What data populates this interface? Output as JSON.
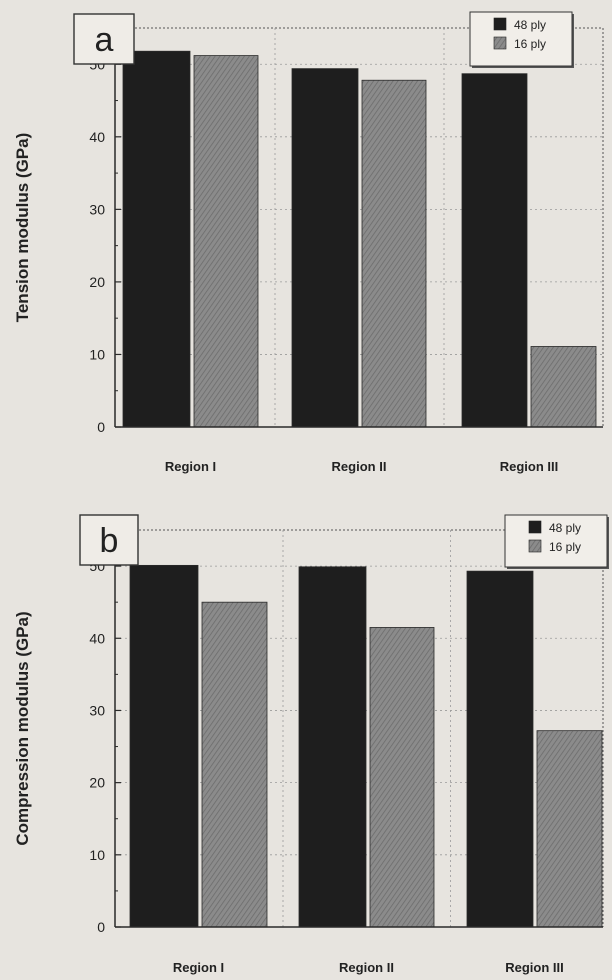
{
  "chart_data": [
    {
      "type": "bar",
      "panel_label": "a",
      "ylabel": "Tension modulus (GPa)",
      "categories": [
        "Region I",
        "Region II",
        "Region III"
      ],
      "series": [
        {
          "name": "48 ply",
          "values": [
            51.8,
            49.4,
            48.7
          ]
        },
        {
          "name": "16 ply",
          "values": [
            51.2,
            47.8,
            11.1
          ]
        }
      ],
      "ylim": [
        0,
        55
      ],
      "yticks": [
        "0",
        "10",
        "20",
        "30",
        "40",
        "50"
      ],
      "grid": true,
      "legend_position": "top-right"
    },
    {
      "type": "bar",
      "panel_label": "b",
      "ylabel": "Compression modulus (GPa)",
      "categories": [
        "Region I",
        "Region II",
        "Region III"
      ],
      "series": [
        {
          "name": "48 ply",
          "values": [
            50.1,
            49.9,
            49.3
          ]
        },
        {
          "name": "16 ply",
          "values": [
            45.0,
            41.5,
            27.2
          ]
        }
      ],
      "ylim": [
        0,
        55
      ],
      "yticks": [
        "0",
        "10",
        "20",
        "30",
        "40",
        "50"
      ],
      "grid": true,
      "legend_position": "top-right"
    }
  ],
  "colors": {
    "series_48_ply": "#1e1e1e",
    "series_16_ply": "#858585",
    "axis": "#2a2a2a",
    "grid": "#9a9a9a",
    "background": "#e7e4df"
  }
}
